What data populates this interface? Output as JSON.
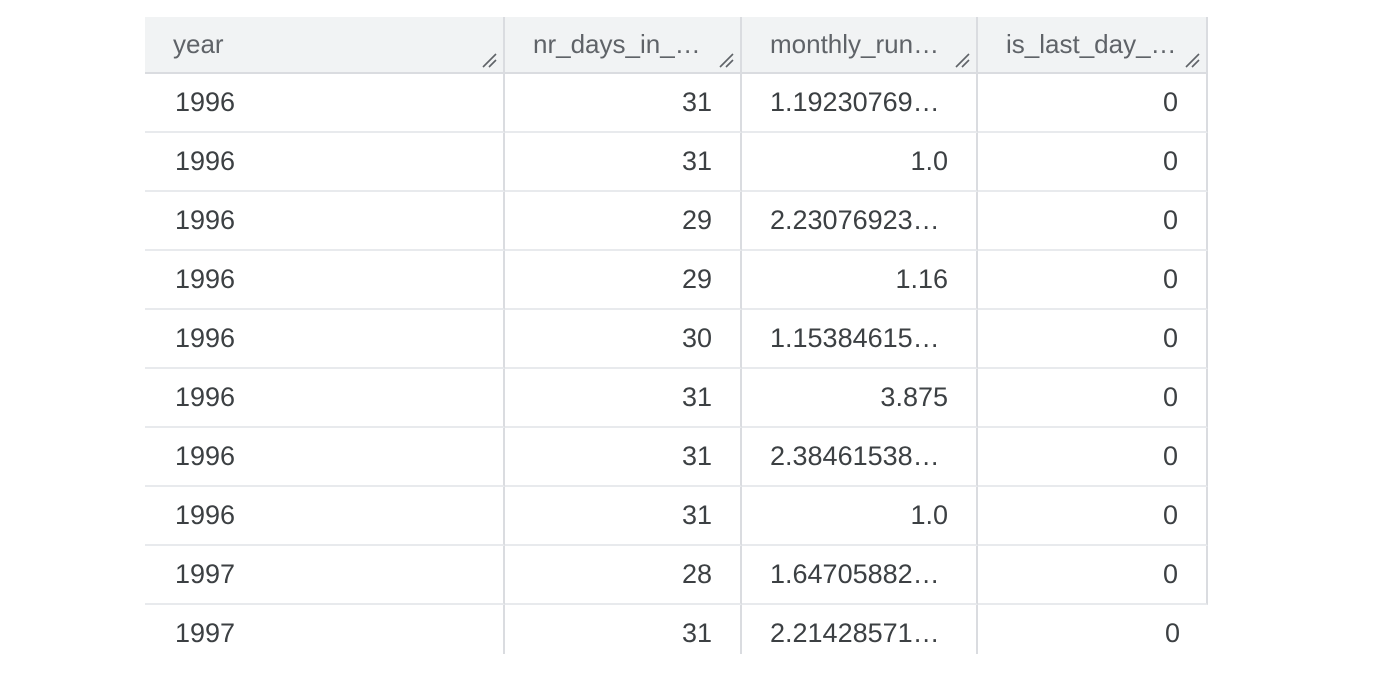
{
  "table": {
    "columns": [
      {
        "label": "year",
        "align": "left"
      },
      {
        "label": "nr_days_in_…",
        "align": "right"
      },
      {
        "label": "monthly_run…",
        "align": "right"
      },
      {
        "label": "is_last_day_…",
        "align": "right"
      }
    ],
    "rows": [
      [
        "1996",
        "31",
        "1.19230769…",
        "0"
      ],
      [
        "1996",
        "31",
        "1.0",
        "0"
      ],
      [
        "1996",
        "29",
        "2.23076923…",
        "0"
      ],
      [
        "1996",
        "29",
        "1.16",
        "0"
      ],
      [
        "1996",
        "30",
        "1.15384615…",
        "0"
      ],
      [
        "1996",
        "31",
        "3.875",
        "0"
      ],
      [
        "1996",
        "31",
        "2.38461538…",
        "0"
      ],
      [
        "1996",
        "31",
        "1.0",
        "0"
      ],
      [
        "1997",
        "28",
        "1.64705882…",
        "0"
      ],
      [
        "1997",
        "31",
        "2.21428571…",
        "0"
      ]
    ]
  }
}
